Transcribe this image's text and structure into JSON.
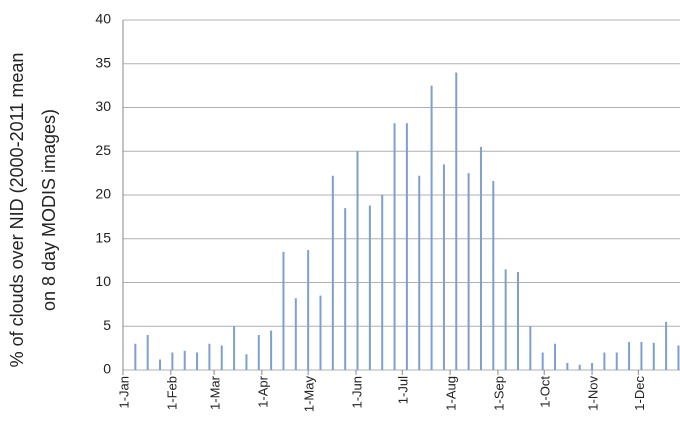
{
  "chart_data": {
    "type": "bar",
    "y_label": [
      "% of clouds over NID (2000-2011 mean",
      "on 8 day MODIS images)"
    ],
    "x": [
      9,
      17,
      25,
      33,
      41,
      49,
      57,
      65,
      73,
      81,
      89,
      97,
      105,
      113,
      121,
      129,
      137,
      145,
      153,
      161,
      169,
      177,
      185,
      193,
      201,
      209,
      217,
      225,
      233,
      241,
      249,
      257,
      265,
      273,
      281,
      289,
      297,
      305,
      313,
      321,
      329,
      337,
      345,
      353,
      361
    ],
    "values": [
      3,
      4,
      1.2,
      2,
      2.2,
      2,
      3,
      2.8,
      5,
      1.8,
      4,
      4.5,
      13.5,
      8.2,
      13.7,
      8.5,
      22.2,
      18.5,
      25,
      18.8,
      20,
      28.2,
      28.2,
      22.2,
      32.5,
      23.5,
      34,
      22.5,
      25.5,
      21.6,
      11.5,
      11.2,
      5,
      2,
      3,
      0.8,
      0.6,
      0.8,
      2,
      2,
      3.2,
      3.2,
      3.1,
      5.5,
      2.8
    ],
    "color": "#7f9fcf",
    "xlim": [
      1,
      362
    ],
    "xticks": [
      {
        "value": 1,
        "label": "1-Jan"
      },
      {
        "value": 32,
        "label": "1-Feb"
      },
      {
        "value": 60,
        "label": "1-Mar"
      },
      {
        "value": 91,
        "label": "1-Apr"
      },
      {
        "value": 121,
        "label": "1-May"
      },
      {
        "value": 152,
        "label": "1-Jun"
      },
      {
        "value": 182,
        "label": "1-Jul"
      },
      {
        "value": 213,
        "label": "1-Aug"
      },
      {
        "value": 244,
        "label": "1-Sep"
      },
      {
        "value": 274,
        "label": "1-Oct"
      },
      {
        "value": 305,
        "label": "1-Nov"
      },
      {
        "value": 335,
        "label": "1-Dec"
      }
    ],
    "ylim": [
      0,
      40
    ],
    "yticks": [
      0,
      5,
      10,
      15,
      20,
      25,
      30,
      35,
      40
    ],
    "grid": true
  }
}
